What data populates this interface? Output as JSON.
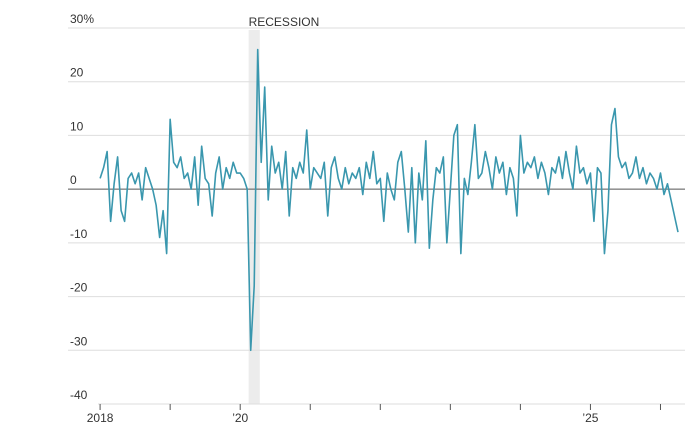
{
  "chart_data": {
    "type": "line",
    "shaded": {
      "label": "RECESSION",
      "x": [
        2020.12,
        2020.28
      ]
    },
    "series": [
      {
        "color": "#3a97ae",
        "x": [
          2018.0,
          2018.05,
          2018.1,
          2018.15,
          2018.2,
          2018.25,
          2018.3,
          2018.35,
          2018.4,
          2018.45,
          2018.5,
          2018.55,
          2018.6,
          2018.65,
          2018.7,
          2018.75,
          2018.8,
          2018.85,
          2018.9,
          2018.95,
          2019.0,
          2019.05,
          2019.1,
          2019.15,
          2019.2,
          2019.25,
          2019.3,
          2019.35,
          2019.4,
          2019.45,
          2019.5,
          2019.55,
          2019.6,
          2019.65,
          2019.7,
          2019.75,
          2019.8,
          2019.85,
          2019.9,
          2019.95,
          2020.0,
          2020.05,
          2020.1,
          2020.15,
          2020.2,
          2020.25,
          2020.3,
          2020.35,
          2020.4,
          2020.45,
          2020.5,
          2020.55,
          2020.6,
          2020.65,
          2020.7,
          2020.75,
          2020.8,
          2020.85,
          2020.9,
          2020.95,
          2021.0,
          2021.05,
          2021.1,
          2021.15,
          2021.2,
          2021.25,
          2021.3,
          2021.35,
          2021.4,
          2021.45,
          2021.5,
          2021.55,
          2021.6,
          2021.65,
          2021.7,
          2021.75,
          2021.8,
          2021.85,
          2021.9,
          2021.95,
          2022.0,
          2022.05,
          2022.1,
          2022.15,
          2022.2,
          2022.25,
          2022.3,
          2022.35,
          2022.4,
          2022.45,
          2022.5,
          2022.55,
          2022.6,
          2022.65,
          2022.7,
          2022.75,
          2022.8,
          2022.85,
          2022.9,
          2022.95,
          2023.0,
          2023.05,
          2023.1,
          2023.15,
          2023.2,
          2023.25,
          2023.3,
          2023.35,
          2023.4,
          2023.45,
          2023.5,
          2023.55,
          2023.6,
          2023.65,
          2023.7,
          2023.75,
          2023.8,
          2023.85,
          2023.9,
          2023.95,
          2024.0,
          2024.05,
          2024.1,
          2024.15,
          2024.2,
          2024.25,
          2024.3,
          2024.35,
          2024.4,
          2024.45,
          2024.5,
          2024.55,
          2024.6,
          2024.65,
          2024.7,
          2024.75,
          2024.8,
          2024.85,
          2024.9,
          2024.95,
          2025.0,
          2025.05,
          2025.1,
          2025.15,
          2025.2,
          2025.25,
          2025.3,
          2025.35,
          2025.4,
          2025.45,
          2025.5,
          2025.55,
          2025.6,
          2025.65,
          2025.7,
          2025.75,
          2025.8,
          2025.85,
          2025.9,
          2025.95,
          2026.0,
          2026.05,
          2026.1,
          2026.15,
          2026.2,
          2026.25
        ],
        "values": [
          2,
          4,
          7,
          -6,
          1,
          6,
          -4,
          -6,
          2,
          3,
          1,
          3,
          -2,
          4,
          2,
          0,
          -3,
          -9,
          -4,
          -12,
          13,
          5,
          4,
          6,
          2,
          3,
          0,
          6,
          -3,
          8,
          2,
          1,
          -5,
          3,
          6,
          0,
          4,
          2,
          5,
          3,
          3,
          2,
          0,
          -30,
          -18,
          26,
          5,
          19,
          -2,
          8,
          3,
          5,
          0,
          7,
          -5,
          4,
          2,
          5,
          3,
          11,
          0,
          4,
          3,
          2,
          5,
          -5,
          4,
          6,
          2,
          0,
          4,
          1,
          3,
          2,
          4,
          -1,
          5,
          2,
          7,
          1,
          2,
          -6,
          3,
          0,
          -2,
          5,
          7,
          0,
          -8,
          4,
          -10,
          3,
          -2,
          9,
          -11,
          -2,
          4,
          3,
          6,
          -10,
          0,
          10,
          12,
          -12,
          2,
          -1,
          5,
          12,
          2,
          3,
          7,
          4,
          0,
          6,
          3,
          5,
          -1,
          4,
          2,
          -5,
          10,
          3,
          5,
          4,
          6,
          2,
          5,
          3,
          -1,
          4,
          3,
          6,
          2,
          7,
          3,
          0,
          8,
          3,
          4,
          1,
          3,
          -6,
          4,
          3,
          -12,
          -4,
          12,
          15,
          6,
          4,
          5,
          2,
          3,
          6,
          2,
          4,
          1,
          3,
          2,
          0,
          3,
          -1,
          1,
          -2,
          -5,
          -8
        ]
      }
    ],
    "xlim": [
      2017.97,
      2026.35
    ],
    "xticks": [
      {
        "value": 2018,
        "label": "2018"
      },
      {
        "value": 2020,
        "label": "’20"
      },
      {
        "value": 2025,
        "label": "’25"
      }
    ],
    "xminor_ticks": [
      2019,
      2021,
      2022,
      2023,
      2024,
      2026
    ],
    "ylim": [
      -40,
      30
    ],
    "yticks": [
      {
        "value": 30,
        "label": "30%"
      },
      20,
      10,
      0,
      -10,
      -20,
      -30,
      -40
    ],
    "grid": true
  }
}
